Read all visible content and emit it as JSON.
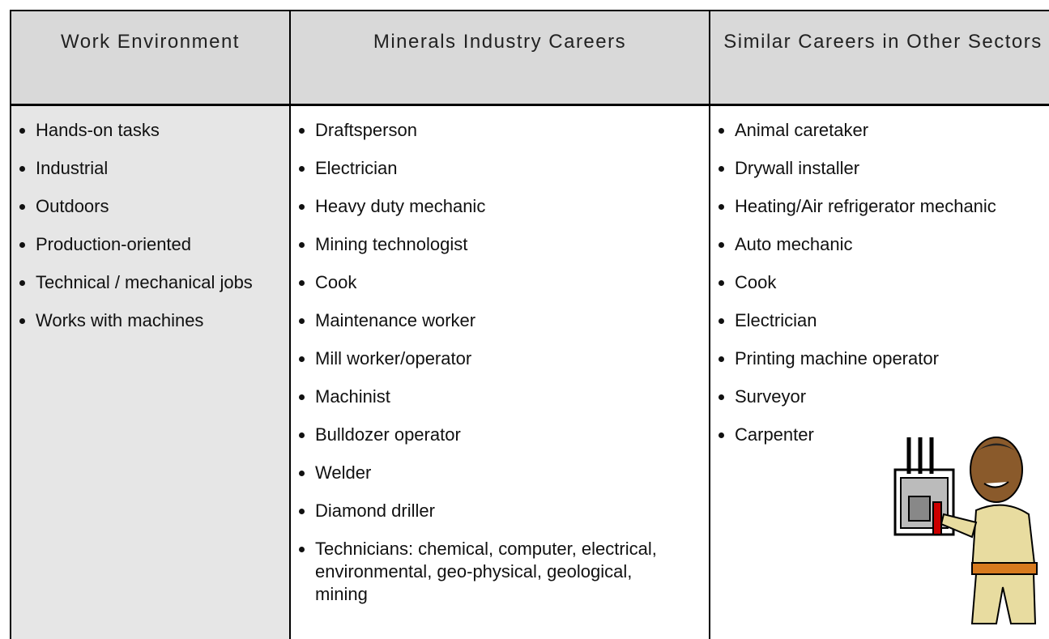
{
  "table": {
    "headers": [
      "Work Environment",
      "Minerals Industry Careers",
      "Similar Careers in Other Sectors"
    ],
    "columns": [
      [
        "Hands-on tasks",
        "Industrial",
        "Outdoors",
        "Production-oriented",
        "Technical / mechanical jobs",
        "Works with machines"
      ],
      [
        "Draftsperson",
        "Electrician",
        "Heavy duty mechanic",
        "Mining technologist",
        "Cook",
        "Maintenance worker",
        "Mill worker/operator",
        "Machinist",
        "Bulldozer operator",
        "Welder",
        "Diamond driller",
        "Technicians: chemical, computer, electrical, environmental, geo-physical, geological, mining"
      ],
      [
        "Animal caretaker",
        "Drywall installer",
        "Heating/Air refrigerator mechanic",
        "Auto mechanic",
        "Cook",
        "Electrician",
        "Printing machine operator",
        "Surveyor",
        "Carpenter"
      ]
    ]
  }
}
